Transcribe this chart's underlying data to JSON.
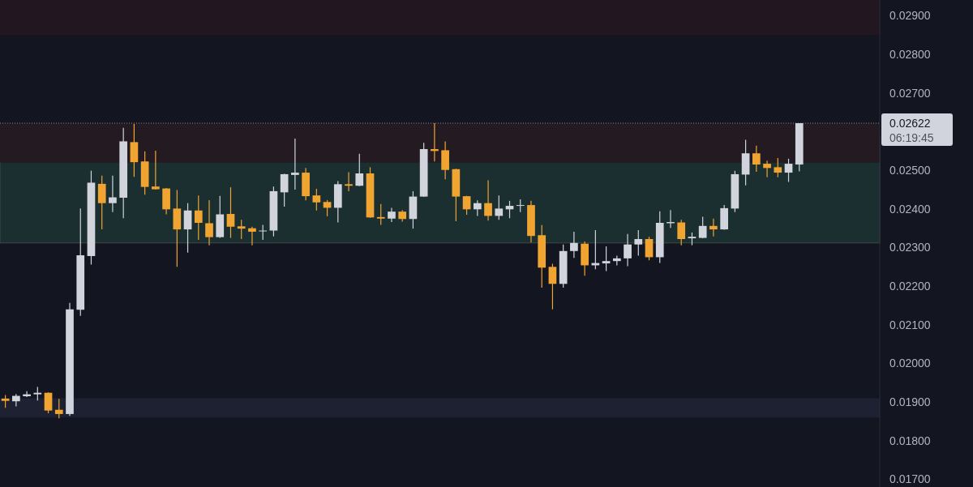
{
  "chart_data": {
    "type": "candlestick",
    "categories": [
      null,
      null,
      null,
      null,
      null,
      null,
      null,
      null,
      null,
      null,
      null,
      null,
      null,
      null,
      null,
      null,
      null,
      null,
      null,
      null,
      null,
      null,
      null,
      null,
      null,
      null,
      null,
      null,
      null,
      null,
      null,
      null,
      null,
      null,
      null,
      null,
      null,
      null,
      null,
      null,
      null,
      null,
      null,
      null,
      null,
      null,
      null,
      null,
      null,
      null,
      null,
      null,
      null,
      null,
      null,
      null,
      null,
      null,
      null,
      null,
      null,
      null,
      null,
      null,
      null,
      null,
      null,
      null,
      null,
      null,
      null,
      null,
      null,
      null,
      null,
      null,
      null,
      null,
      null,
      null,
      null,
      null
    ],
    "ohlc": [
      [
        0.01909,
        0.01918,
        0.01885,
        0.01903
      ],
      [
        0.01902,
        0.01921,
        0.01889,
        0.01916
      ],
      [
        0.01915,
        0.01928,
        0.01913,
        0.0192
      ],
      [
        0.0192,
        0.01939,
        0.01904,
        0.01924
      ],
      [
        0.01924,
        0.01925,
        0.01871,
        0.01878
      ],
      [
        0.0188,
        0.01908,
        0.01858,
        0.01869
      ],
      [
        0.01869,
        0.02157,
        0.01864,
        0.0214
      ],
      [
        0.02139,
        0.02401,
        0.02123,
        0.0228
      ],
      [
        0.02278,
        0.02499,
        0.02256,
        0.02468
      ],
      [
        0.02465,
        0.02486,
        0.02347,
        0.02415
      ],
      [
        0.02415,
        0.02486,
        0.02392,
        0.0243
      ],
      [
        0.02429,
        0.0261,
        0.02376,
        0.02575
      ],
      [
        0.02573,
        0.0262,
        0.02483,
        0.02521
      ],
      [
        0.02523,
        0.02549,
        0.02437,
        0.02457
      ],
      [
        0.02458,
        0.02551,
        0.0245,
        0.02451
      ],
      [
        0.02453,
        0.02454,
        0.02386,
        0.02399
      ],
      [
        0.02401,
        0.02449,
        0.0225,
        0.02347
      ],
      [
        0.02347,
        0.02415,
        0.02287,
        0.02396
      ],
      [
        0.02396,
        0.02435,
        0.0232,
        0.02364
      ],
      [
        0.02363,
        0.02423,
        0.02306,
        0.02327
      ],
      [
        0.02327,
        0.02434,
        0.02325,
        0.02386
      ],
      [
        0.02387,
        0.02456,
        0.02325,
        0.02354
      ],
      [
        0.02355,
        0.02372,
        0.02322,
        0.02349
      ],
      [
        0.0235,
        0.02354,
        0.02306,
        0.02341
      ],
      [
        0.02342,
        0.02359,
        0.0232,
        0.02344
      ],
      [
        0.02344,
        0.02458,
        0.02329,
        0.02446
      ],
      [
        0.02443,
        0.02491,
        0.02406,
        0.0249
      ],
      [
        0.02488,
        0.02582,
        0.0245,
        0.02494
      ],
      [
        0.02494,
        0.02506,
        0.02422,
        0.02433
      ],
      [
        0.02435,
        0.02452,
        0.02396,
        0.02417
      ],
      [
        0.02418,
        0.02423,
        0.02381,
        0.02403
      ],
      [
        0.02403,
        0.02472,
        0.02365,
        0.02464
      ],
      [
        0.02464,
        0.02495,
        0.02446,
        0.0246
      ],
      [
        0.0246,
        0.02543,
        0.02459,
        0.02492
      ],
      [
        0.02492,
        0.02508,
        0.02377,
        0.02378
      ],
      [
        0.02379,
        0.02413,
        0.02359,
        0.02375
      ],
      [
        0.02375,
        0.02403,
        0.02366,
        0.02393
      ],
      [
        0.02393,
        0.02397,
        0.02367,
        0.02374
      ],
      [
        0.02374,
        0.02446,
        0.02349,
        0.02432
      ],
      [
        0.02432,
        0.02571,
        0.02431,
        0.02555
      ],
      [
        0.02555,
        0.02622,
        0.02523,
        0.0255
      ],
      [
        0.02552,
        0.02575,
        0.02477,
        0.02501
      ],
      [
        0.02503,
        0.02504,
        0.02368,
        0.02432
      ],
      [
        0.02433,
        0.02434,
        0.02385,
        0.02399
      ],
      [
        0.02399,
        0.02422,
        0.02382,
        0.02415
      ],
      [
        0.02415,
        0.02474,
        0.0237,
        0.02382
      ],
      [
        0.02382,
        0.02435,
        0.02372,
        0.02401
      ],
      [
        0.02399,
        0.02421,
        0.02376,
        0.02408
      ],
      [
        0.02408,
        0.02425,
        0.02392,
        0.0241
      ],
      [
        0.0241,
        0.02421,
        0.02313,
        0.0233
      ],
      [
        0.02332,
        0.02358,
        0.02196,
        0.02248
      ],
      [
        0.0225,
        0.02258,
        0.0214,
        0.02206
      ],
      [
        0.02206,
        0.02308,
        0.02196,
        0.02291
      ],
      [
        0.02291,
        0.02341,
        0.02273,
        0.02312
      ],
      [
        0.0231,
        0.02316,
        0.02227,
        0.02254
      ],
      [
        0.02254,
        0.02345,
        0.02244,
        0.0226
      ],
      [
        0.02259,
        0.02303,
        0.02239,
        0.02265
      ],
      [
        0.02265,
        0.02279,
        0.02254,
        0.02272
      ],
      [
        0.02272,
        0.02335,
        0.02252,
        0.02308
      ],
      [
        0.02308,
        0.02345,
        0.02279,
        0.02322
      ],
      [
        0.02322,
        0.02328,
        0.02267,
        0.02275
      ],
      [
        0.02275,
        0.02394,
        0.0226,
        0.02364
      ],
      [
        0.02363,
        0.02397,
        0.02351,
        0.02366
      ],
      [
        0.02365,
        0.02372,
        0.02306,
        0.02322
      ],
      [
        0.02324,
        0.02339,
        0.02306,
        0.02328
      ],
      [
        0.02325,
        0.0238,
        0.02324,
        0.02356
      ],
      [
        0.02356,
        0.02375,
        0.02329,
        0.02347
      ],
      [
        0.02347,
        0.0241,
        0.02346,
        0.02402
      ],
      [
        0.02401,
        0.02499,
        0.02392,
        0.0249
      ],
      [
        0.02489,
        0.02579,
        0.02461,
        0.02544
      ],
      [
        0.02544,
        0.02564,
        0.02496,
        0.02515
      ],
      [
        0.02517,
        0.02525,
        0.02482,
        0.02506
      ],
      [
        0.02508,
        0.02532,
        0.02482,
        0.02494
      ],
      [
        0.02494,
        0.0253,
        0.0247,
        0.02517
      ],
      [
        0.02515,
        0.02622,
        0.02497,
        0.02622
      ],
      null,
      null,
      null,
      null,
      null,
      null,
      null
    ],
    "colors": [
      "#f0a431",
      "#d1d4dc",
      "#d1d4dc",
      "#d1d4dc",
      "#f0a431",
      "#f0a431",
      "#d1d4dc",
      "#d1d4dc",
      "#d1d4dc",
      "#f0a431",
      "#d1d4dc",
      "#d1d4dc",
      "#f0a431",
      "#f0a431",
      "#f0a431",
      "#f0a431",
      "#f0a431",
      "#d1d4dc",
      "#f0a431",
      "#f0a431",
      "#d1d4dc",
      "#f0a431",
      "#f0a431",
      "#f0a431",
      "#d1d4dc",
      "#d1d4dc",
      "#d1d4dc",
      "#d1d4dc",
      "#f0a431",
      "#f0a431",
      "#f0a431",
      "#d1d4dc",
      "#f0a431",
      "#d1d4dc",
      "#f0a431",
      "#f0a431",
      "#d1d4dc",
      "#f0a431",
      "#d1d4dc",
      "#d1d4dc",
      "#f0a431",
      "#f0a431",
      "#f0a431",
      "#f0a431",
      "#d1d4dc",
      "#f0a431",
      "#d1d4dc",
      "#d1d4dc",
      "#d1d4dc",
      "#f0a431",
      "#f0a431",
      "#f0a431",
      "#d1d4dc",
      "#d1d4dc",
      "#f0a431",
      "#d1d4dc",
      "#d1d4dc",
      "#d1d4dc",
      "#d1d4dc",
      "#d1d4dc",
      "#f0a431",
      "#d1d4dc",
      "#d1d4dc",
      "#f0a431",
      "#d1d4dc",
      "#d1d4dc",
      "#f0a431",
      "#d1d4dc",
      "#d1d4dc",
      "#d1d4dc",
      "#f0a431",
      "#f0a431",
      "#f0a431",
      "#d1d4dc",
      "#d1d4dc",
      null,
      null,
      null,
      null,
      null,
      null,
      null
    ],
    "ylim": [
      0.0168,
      0.02941
    ],
    "yticks": [
      {
        "value": 0.017,
        "label": "0.01700"
      },
      {
        "value": 0.018,
        "label": "0.01800"
      },
      {
        "value": 0.019,
        "label": "0.01900"
      },
      {
        "value": 0.02,
        "label": "0.02000"
      },
      {
        "value": 0.021,
        "label": "0.02100"
      },
      {
        "value": 0.022,
        "label": "0.02200"
      },
      {
        "value": 0.023,
        "label": "0.02300"
      },
      {
        "value": 0.024,
        "label": "0.02400"
      },
      {
        "value": 0.025,
        "label": "0.02500"
      },
      {
        "value": 0.027,
        "label": "0.02700"
      },
      {
        "value": 0.028,
        "label": "0.02800"
      },
      {
        "value": 0.029,
        "label": "0.02900"
      }
    ],
    "bands": [
      {
        "axis": "y",
        "from": 0.0285,
        "to": 0.02941,
        "color": "#221620"
      },
      {
        "axis": "y",
        "from": 0.02312,
        "to": 0.02589,
        "color": "#1b2e30"
      },
      {
        "axis": "y",
        "from": 0.0252,
        "to": 0.02622,
        "color": "#231a22"
      },
      {
        "axis": "y",
        "from": 0.0186,
        "to": 0.0191,
        "color": "#1d2132"
      }
    ],
    "ref_lines": [
      {
        "axis": "y",
        "value": 0.02622,
        "label": "0.02622",
        "line_style": "dotted",
        "color": "#8a8d96"
      }
    ],
    "annotations": [
      "06:19:45"
    ]
  }
}
